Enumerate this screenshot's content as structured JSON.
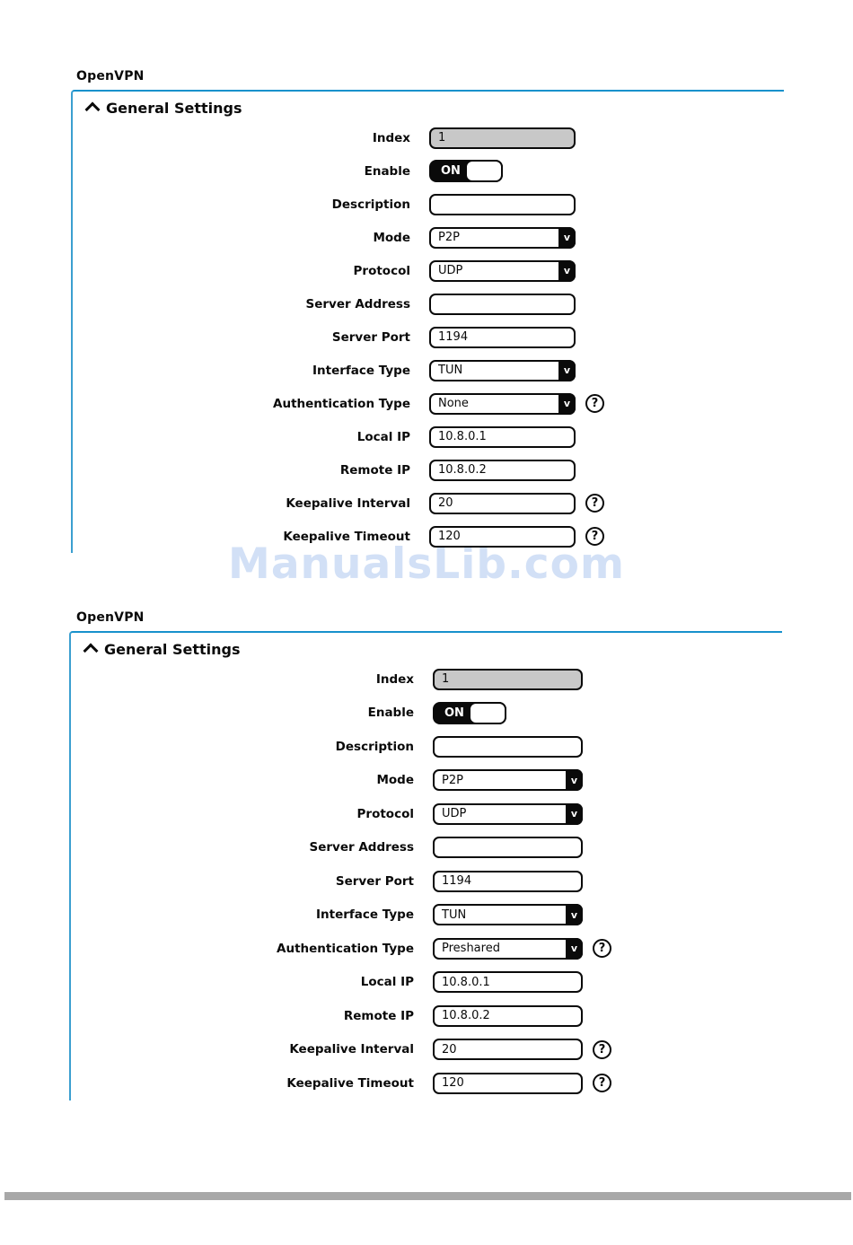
{
  "page": {
    "watermark": "ManualsLib.com"
  },
  "icons": {
    "help": "?",
    "chevron": "v"
  },
  "panels": [
    {
      "title": "OpenVPN",
      "section_title": "General Settings",
      "fields": [
        {
          "label": "Index",
          "type": "readonly",
          "value": "1",
          "help": false
        },
        {
          "label": "Enable",
          "type": "toggle",
          "value": "ON",
          "help": false
        },
        {
          "label": "Description",
          "type": "text",
          "value": "",
          "help": false
        },
        {
          "label": "Mode",
          "type": "select",
          "value": "P2P",
          "help": false
        },
        {
          "label": "Protocol",
          "type": "select",
          "value": "UDP",
          "help": false
        },
        {
          "label": "Server Address",
          "type": "text",
          "value": "",
          "help": false
        },
        {
          "label": "Server Port",
          "type": "text",
          "value": "1194",
          "help": false
        },
        {
          "label": "Interface Type",
          "type": "select",
          "value": "TUN",
          "help": false
        },
        {
          "label": "Authentication Type",
          "type": "select",
          "value": "None",
          "help": true
        },
        {
          "label": "Local IP",
          "type": "text",
          "value": "10.8.0.1",
          "help": false
        },
        {
          "label": "Remote IP",
          "type": "text",
          "value": "10.8.0.2",
          "help": false
        },
        {
          "label": "Keepalive Interval",
          "type": "text",
          "value": "20",
          "help": true
        },
        {
          "label": "Keepalive Timeout",
          "type": "text",
          "value": "120",
          "help": true
        }
      ]
    },
    {
      "title": "OpenVPN",
      "section_title": "General Settings",
      "fields": [
        {
          "label": "Index",
          "type": "readonly",
          "value": "1",
          "help": false
        },
        {
          "label": "Enable",
          "type": "toggle",
          "value": "ON",
          "help": false
        },
        {
          "label": "Description",
          "type": "text",
          "value": "",
          "help": false
        },
        {
          "label": "Mode",
          "type": "select",
          "value": "P2P",
          "help": false
        },
        {
          "label": "Protocol",
          "type": "select",
          "value": "UDP",
          "help": false
        },
        {
          "label": "Server Address",
          "type": "text",
          "value": "",
          "help": false
        },
        {
          "label": "Server Port",
          "type": "text",
          "value": "1194",
          "help": false
        },
        {
          "label": "Interface Type",
          "type": "select",
          "value": "TUN",
          "help": false
        },
        {
          "label": "Authentication Type",
          "type": "select",
          "value": "Preshared",
          "help": true
        },
        {
          "label": "Local IP",
          "type": "text",
          "value": "10.8.0.1",
          "help": false
        },
        {
          "label": "Remote IP",
          "type": "text",
          "value": "10.8.0.2",
          "help": false
        },
        {
          "label": "Keepalive Interval",
          "type": "text",
          "value": "20",
          "help": true
        },
        {
          "label": "Keepalive Timeout",
          "type": "text",
          "value": "120",
          "help": true
        }
      ]
    }
  ],
  "colors": {
    "panel_border_top": "#1791cc",
    "panel_border_left": "#3b9fd0",
    "readonly_bg": "#c8c8c8",
    "control_border": "#0a0a0a",
    "watermark": "#d2e0f6",
    "bottom_bar": "#a8a8a8"
  }
}
